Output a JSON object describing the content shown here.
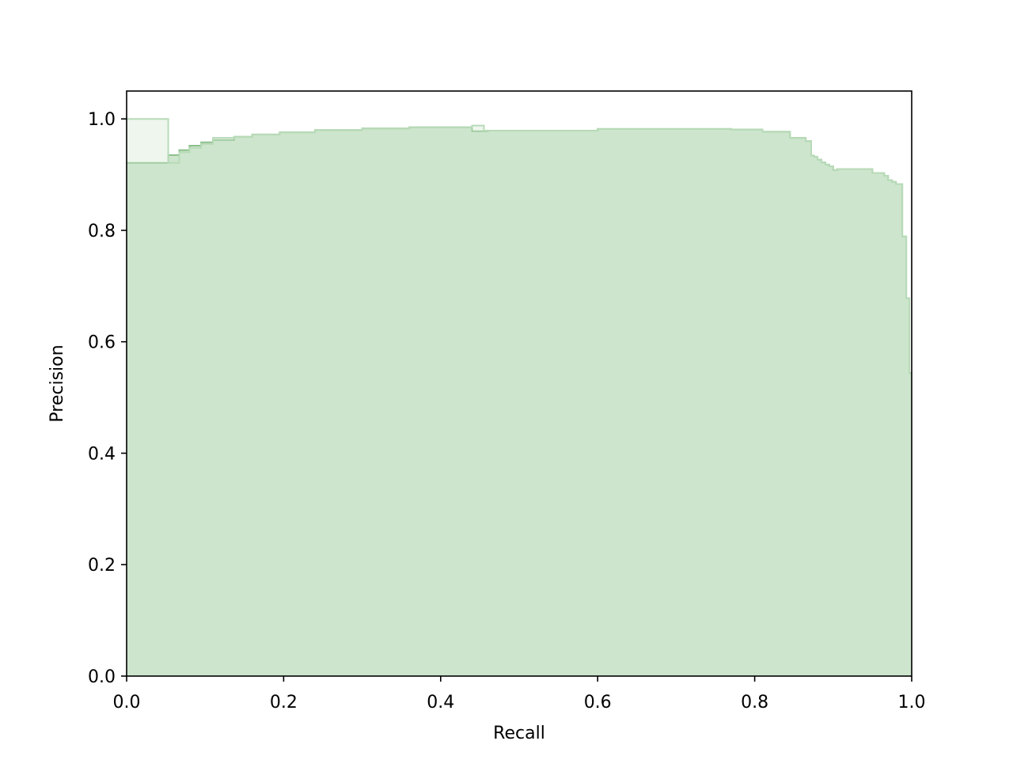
{
  "chart_data": {
    "type": "area",
    "title": "",
    "xlabel": "Recall",
    "ylabel": "Precision",
    "xlim": [
      0.0,
      1.0
    ],
    "ylim": [
      0.0,
      1.05
    ],
    "xticks": [
      "0.0",
      "0.2",
      "0.4",
      "0.6",
      "0.8",
      "1.0"
    ],
    "yticks": [
      "0.0",
      "0.2",
      "0.4",
      "0.6",
      "0.8",
      "1.0"
    ],
    "grid": false,
    "legend": "none",
    "colors": {
      "fill": "#cde5cd",
      "line": "#8cc08c",
      "faint_line": "#b7dab7"
    },
    "series": [
      {
        "step": "post",
        "x": [
          0.0,
          0.053,
          0.067,
          0.08,
          0.095,
          0.11,
          0.137,
          0.16,
          0.195,
          0.24,
          0.3,
          0.36,
          0.44,
          0.46,
          0.6,
          0.77,
          0.81,
          0.845,
          0.865,
          0.872,
          0.876,
          0.88,
          0.885,
          0.89,
          0.895,
          0.9,
          0.905,
          0.95,
          0.965,
          0.97,
          0.975,
          0.98,
          0.988,
          0.993,
          0.997,
          1.0
        ],
        "y": [
          0.921,
          0.935,
          0.944,
          0.952,
          0.958,
          0.962,
          0.968,
          0.972,
          0.976,
          0.98,
          0.983,
          0.985,
          0.978,
          0.979,
          0.982,
          0.981,
          0.977,
          0.966,
          0.96,
          0.934,
          0.932,
          0.927,
          0.922,
          0.918,
          0.915,
          0.908,
          0.91,
          0.903,
          0.898,
          0.89,
          0.887,
          0.883,
          0.789,
          0.678,
          0.544,
          0.544
        ]
      },
      {
        "step": "post",
        "x": [
          0.0,
          0.053,
          0.067,
          0.08,
          0.095,
          0.11,
          0.137,
          0.16,
          0.195,
          0.24,
          0.3,
          0.36,
          0.44,
          0.455,
          0.6,
          0.77,
          0.81,
          0.845,
          0.865,
          0.872,
          0.876,
          0.88,
          0.885,
          0.89,
          0.895,
          0.9,
          0.905,
          0.95,
          0.965,
          0.97,
          0.975,
          0.98,
          0.988,
          0.993,
          0.997,
          1.0
        ],
        "y": [
          1.0,
          0.921,
          0.94,
          0.948,
          0.955,
          0.966,
          0.968,
          0.972,
          0.976,
          0.98,
          0.983,
          0.985,
          0.988,
          0.979,
          0.982,
          0.981,
          0.977,
          0.966,
          0.96,
          0.934,
          0.932,
          0.927,
          0.922,
          0.918,
          0.915,
          0.908,
          0.91,
          0.903,
          0.898,
          0.89,
          0.887,
          0.883,
          0.789,
          0.678,
          0.544,
          0.544
        ]
      }
    ]
  }
}
